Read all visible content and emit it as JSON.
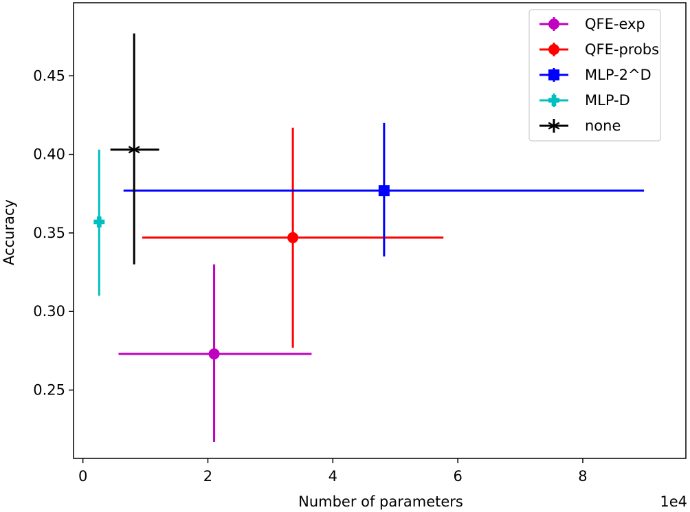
{
  "chart_data": {
    "type": "scatter",
    "title": "",
    "xlabel": "Number of parameters",
    "ylabel": "Accuracy",
    "x_offset_text": "1e4",
    "xlim": [
      -0.15,
      9.65
    ],
    "ylim": [
      0.2065,
      0.4965
    ],
    "x_ticks": [
      0,
      2,
      4,
      6,
      8
    ],
    "x_tick_labels": [
      "0",
      "2",
      "4",
      "6",
      "8"
    ],
    "y_ticks": [
      0.25,
      0.3,
      0.35,
      0.4,
      0.45
    ],
    "y_tick_labels": [
      "0.25",
      "0.30",
      "0.35",
      "0.40",
      "0.45"
    ],
    "grid": false,
    "legend_position": "top-right",
    "series": [
      {
        "name": "QFE-exp",
        "color": "#bf00bf",
        "marker": "circle",
        "x": 2.1,
        "y": 0.273,
        "xerr": [
          0.57,
          3.66
        ],
        "yerr": [
          0.217,
          0.33
        ]
      },
      {
        "name": "QFE-probs",
        "color": "#ff0000",
        "marker": "circle",
        "x": 3.36,
        "y": 0.347,
        "xerr": [
          0.95,
          5.77
        ],
        "yerr": [
          0.277,
          0.417
        ]
      },
      {
        "name": "MLP-2^D",
        "color": "#0000ff",
        "marker": "square",
        "x": 4.82,
        "y": 0.377,
        "xerr": [
          0.65,
          8.98
        ],
        "yerr": [
          0.335,
          0.42
        ]
      },
      {
        "name": "MLP-D",
        "color": "#00bfbf",
        "marker": "plus",
        "x": 0.26,
        "y": 0.357,
        "xerr": [
          0.26,
          0.26
        ],
        "yerr": [
          0.31,
          0.403
        ]
      },
      {
        "name": "none",
        "color": "#000000",
        "marker": "star",
        "x": 0.82,
        "y": 0.403,
        "xerr": [
          0.44,
          1.22
        ],
        "yerr": [
          0.33,
          0.477
        ]
      }
    ]
  }
}
